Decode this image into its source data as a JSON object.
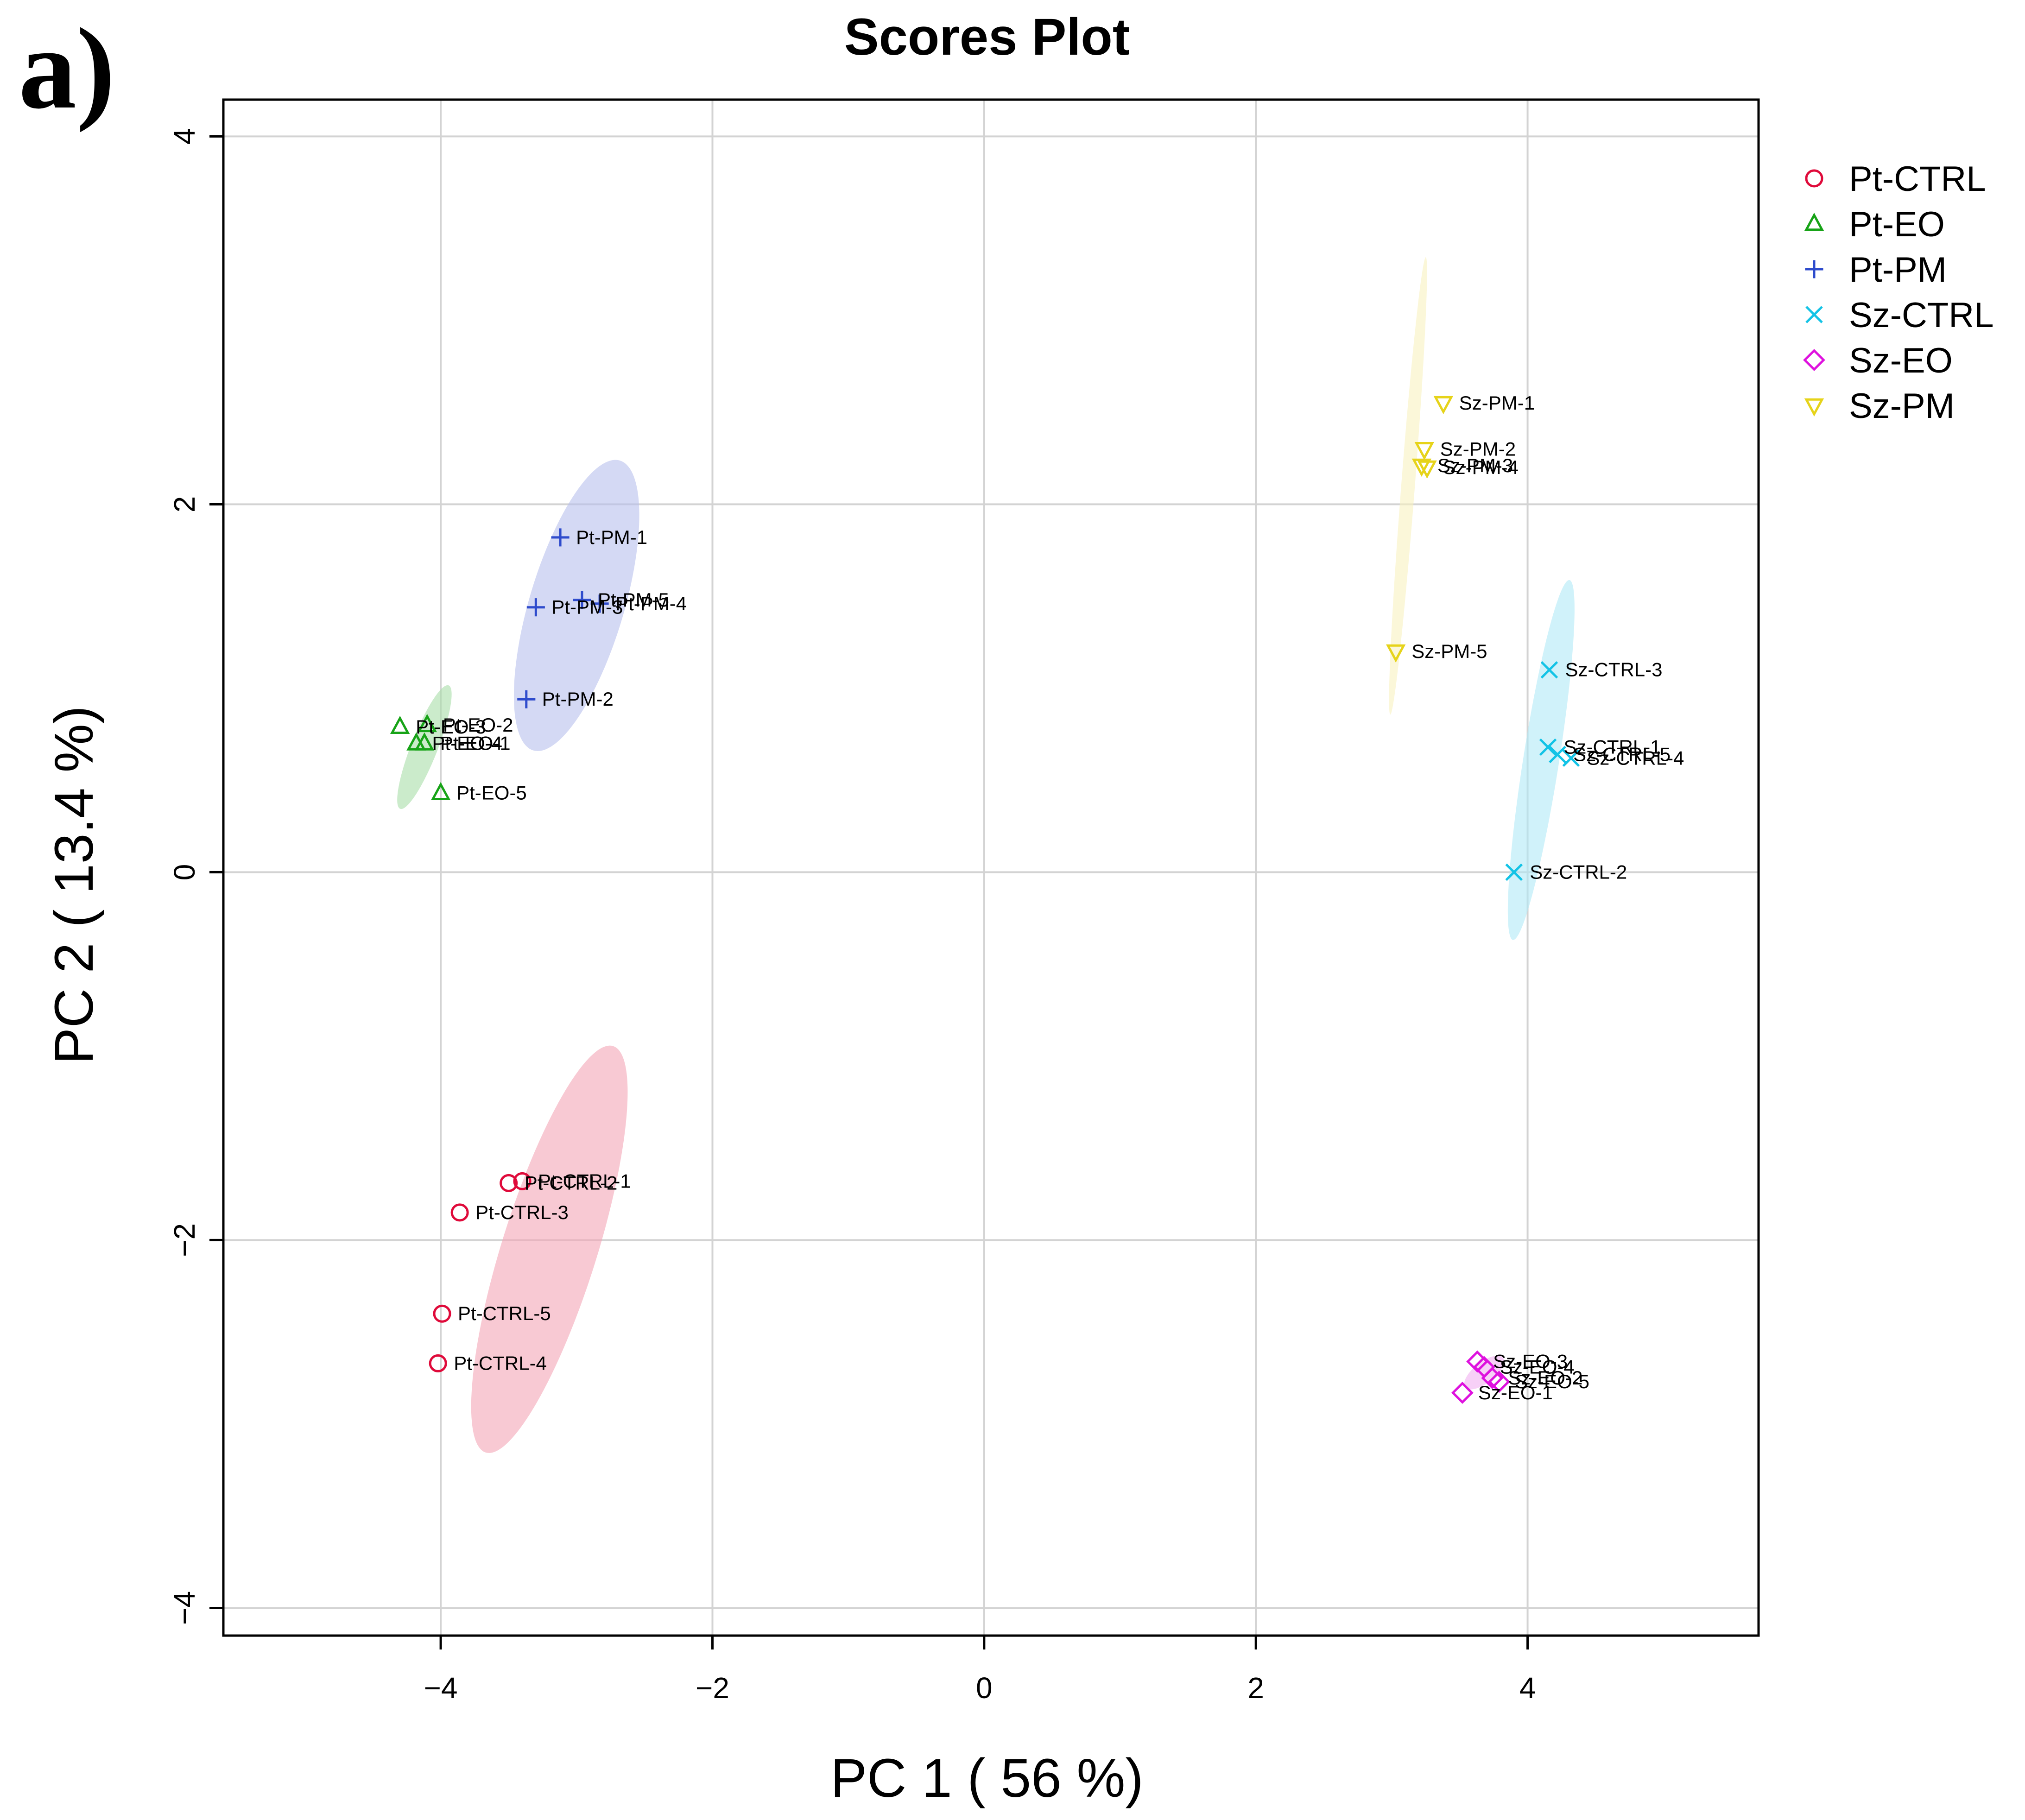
{
  "panel_label": "a)",
  "chart_data": {
    "type": "scatter",
    "title": "Scores Plot",
    "xlabel": "PC 1 ( 56 %)",
    "ylabel": "PC 2 ( 13.4 %)",
    "xlim": [
      -5.6,
      5.7
    ],
    "ylim": [
      -4.15,
      4.2
    ],
    "x_ticks": [
      -4,
      -2,
      0,
      2,
      4
    ],
    "y_ticks": [
      -4,
      -2,
      0,
      2,
      4
    ],
    "x_tick_labels": [
      "−4",
      "−2",
      "0",
      "2",
      "4"
    ],
    "y_tick_labels": [
      "−4",
      "−2",
      "0",
      "2",
      "4"
    ],
    "grid": true,
    "legend_position": "outside-right",
    "series": [
      {
        "name": "Pt-CTRL",
        "marker": "circle",
        "color": "#DF0A3A",
        "fill": "#F4A5B6",
        "ellipse": {
          "cx": -3.2,
          "cy": -2.05,
          "rx": 1.2,
          "ry": 0.33,
          "angle_deg": 67
        },
        "points": [
          {
            "label": "Pt-CTRL-1",
            "x": -3.4,
            "y": -1.68
          },
          {
            "label": "Pt-CTRL-2",
            "x": -3.5,
            "y": -1.69
          },
          {
            "label": "Pt-CTRL-3",
            "x": -3.86,
            "y": -1.85
          },
          {
            "label": "Pt-CTRL-4",
            "x": -4.02,
            "y": -2.67
          },
          {
            "label": "Pt-CTRL-5",
            "x": -3.99,
            "y": -2.4
          }
        ]
      },
      {
        "name": "Pt-EO",
        "marker": "triangle-up",
        "color": "#17A317",
        "fill": "#A9DDA9",
        "ellipse": {
          "cx": -4.12,
          "cy": 0.68,
          "rx": 0.38,
          "ry": 0.09,
          "angle_deg": 62
        },
        "points": [
          {
            "label": "Pt-EO-1",
            "x": -4.12,
            "y": 0.7
          },
          {
            "label": "Pt-EO-2",
            "x": -4.1,
            "y": 0.8
          },
          {
            "label": "Pt-EO-3",
            "x": -4.3,
            "y": 0.79
          },
          {
            "label": "Pt-EO-4",
            "x": -4.18,
            "y": 0.7
          },
          {
            "label": "Pt-EO-5",
            "x": -4.0,
            "y": 0.43
          }
        ]
      },
      {
        "name": "Pt-PM",
        "marker": "plus",
        "color": "#2E4BCC",
        "fill": "#B7C0EC",
        "ellipse": {
          "cx": -3.0,
          "cy": 1.45,
          "rx": 0.85,
          "ry": 0.33,
          "angle_deg": 68
        },
        "points": [
          {
            "label": "Pt-PM-1",
            "x": -3.12,
            "y": 1.82
          },
          {
            "label": "Pt-PM-2",
            "x": -3.37,
            "y": 0.94
          },
          {
            "label": "Pt-PM-3",
            "x": -3.3,
            "y": 1.44
          },
          {
            "label": "Pt-PM-4",
            "x": -2.83,
            "y": 1.46
          },
          {
            "label": "Pt-PM-5",
            "x": -2.96,
            "y": 1.48
          }
        ]
      },
      {
        "name": "Sz-CTRL",
        "marker": "x",
        "color": "#13C3E6",
        "fill": "#B0EAF6",
        "ellipse": {
          "cx": 4.1,
          "cy": 0.61,
          "rx": 1.0,
          "ry": 0.13,
          "angle_deg": 78
        },
        "points": [
          {
            "label": "Sz-CTRL-1",
            "x": 4.15,
            "y": 0.68
          },
          {
            "label": "Sz-CTRL-2",
            "x": 3.9,
            "y": 0.0
          },
          {
            "label": "Sz-CTRL-3",
            "x": 4.16,
            "y": 1.1
          },
          {
            "label": "Sz-CTRL-4",
            "x": 4.32,
            "y": 0.62
          },
          {
            "label": "Sz-CTRL-5",
            "x": 4.22,
            "y": 0.64
          }
        ]
      },
      {
        "name": "Sz-EO",
        "marker": "diamond",
        "color": "#DE11DE",
        "fill": "#F2B0F2",
        "ellipse": {
          "cx": 3.68,
          "cy": -2.72,
          "rx": 0.16,
          "ry": 0.06,
          "angle_deg": 30
        },
        "points": [
          {
            "label": "Sz-EO-1",
            "x": 3.52,
            "y": -2.83
          },
          {
            "label": "Sz-EO-2",
            "x": 3.74,
            "y": -2.75
          },
          {
            "label": "Sz-EO-3",
            "x": 3.63,
            "y": -2.66
          },
          {
            "label": "Sz-EO-4",
            "x": 3.68,
            "y": -2.69
          },
          {
            "label": "Sz-EO-5",
            "x": 3.79,
            "y": -2.77
          }
        ]
      },
      {
        "name": "Sz-PM",
        "marker": "triangle-down",
        "color": "#E6D31A",
        "fill": "#F8F2C0",
        "ellipse": {
          "cx": 3.12,
          "cy": 2.1,
          "rx": 1.25,
          "ry": 0.05,
          "angle_deg": 84
        },
        "points": [
          {
            "label": "Sz-PM-1",
            "x": 3.38,
            "y": 2.55
          },
          {
            "label": "Sz-PM-2",
            "x": 3.24,
            "y": 2.3
          },
          {
            "label": "Sz-PM-3",
            "x": 3.22,
            "y": 2.21
          },
          {
            "label": "Sz-PM-4",
            "x": 3.26,
            "y": 2.2
          },
          {
            "label": "Sz-PM-5",
            "x": 3.03,
            "y": 1.2
          }
        ]
      }
    ]
  }
}
